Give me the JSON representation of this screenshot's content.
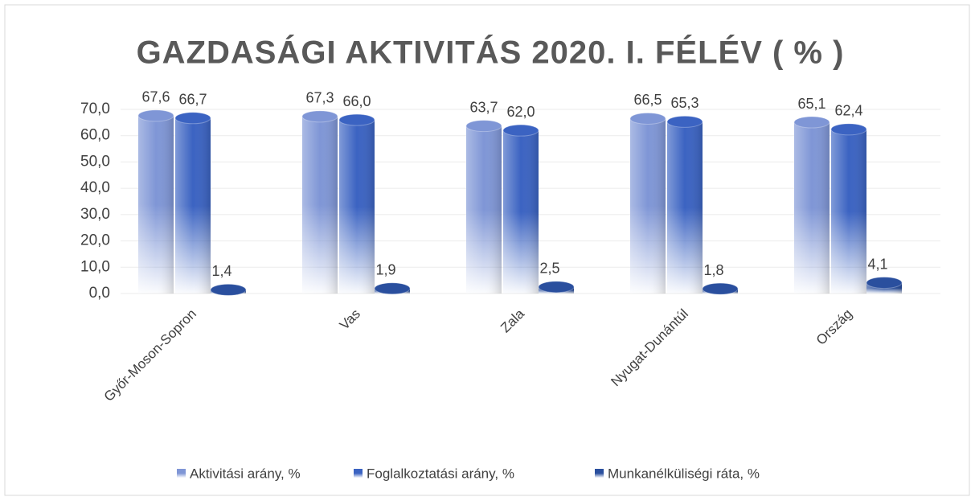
{
  "chart_data": {
    "type": "bar",
    "title": "GAZDASÁGI AKTIVITÁS 2020. I. FÉLÉV ( % )",
    "categories": [
      "Győr-Moson-Sopron",
      "Vas",
      "Zala",
      "Nyugat-Dunántúl",
      "Ország"
    ],
    "series": [
      {
        "name": "Aktivitási arány, %",
        "color": "#7f96d6",
        "values": [
          67.6,
          67.3,
          63.7,
          66.5,
          65.1
        ],
        "value_labels": [
          "67,6",
          "67,3",
          "63,7",
          "66,5",
          "65,1"
        ]
      },
      {
        "name": "Foglalkoztatási arány, %",
        "color": "#3b63c2",
        "values": [
          66.7,
          66.0,
          62.0,
          65.3,
          62.4
        ],
        "value_labels": [
          "66,7",
          "66,0",
          "62,0",
          "65,3",
          "62,4"
        ]
      },
      {
        "name": "Munkanélküliségi ráta, %",
        "color": "#2a4f9e",
        "values": [
          1.4,
          1.9,
          2.5,
          1.8,
          4.1
        ],
        "value_labels": [
          "1,4",
          "1,9",
          "2,5",
          "1,8",
          "4,1"
        ]
      }
    ],
    "ylim": [
      0,
      70
    ],
    "yticks": [
      {
        "value": 0,
        "label": "0,0"
      },
      {
        "value": 10,
        "label": "10,0"
      },
      {
        "value": 20,
        "label": "20,0"
      },
      {
        "value": 30,
        "label": "30,0"
      },
      {
        "value": 40,
        "label": "40,0"
      },
      {
        "value": 50,
        "label": "50,0"
      },
      {
        "value": 60,
        "label": "60,0"
      },
      {
        "value": 70,
        "label": "70,0"
      }
    ],
    "grid": true,
    "legend": "bottom"
  }
}
